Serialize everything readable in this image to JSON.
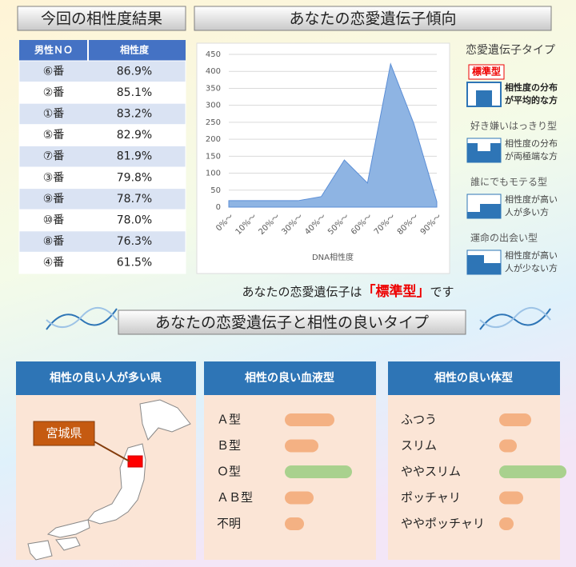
{
  "header": {
    "left_title": "今回の相性度結果",
    "right_title": "あなたの恋愛遺伝子傾向"
  },
  "table": {
    "columns": [
      "男性ＮＯ",
      "相性度"
    ],
    "rows": [
      [
        "⑥番",
        "86.9%"
      ],
      [
        "②番",
        "85.1%"
      ],
      [
        "①番",
        "83.2%"
      ],
      [
        "⑤番",
        "82.9%"
      ],
      [
        "⑦番",
        "81.9%"
      ],
      [
        "③番",
        "79.8%"
      ],
      [
        "⑨番",
        "78.7%"
      ],
      [
        "⑩番",
        "78.0%"
      ],
      [
        "⑧番",
        "76.3%"
      ],
      [
        "④番",
        "61.5%"
      ]
    ]
  },
  "chart_data": [
    {
      "type": "area",
      "x_label": "DNA相性度",
      "categories": [
        "0%～",
        "10%～",
        "20%～",
        "30%～",
        "40%～",
        "50%～",
        "60%～",
        "70%～",
        "80%～",
        "90%～"
      ],
      "values": [
        19,
        19,
        19,
        19,
        31,
        139,
        71,
        422,
        247,
        16
      ],
      "color": "#8eb4e3",
      "ylim": [
        0,
        450
      ],
      "yticks": [
        0,
        50,
        100,
        150,
        200,
        250,
        300,
        350,
        400,
        450
      ],
      "grid": true
    },
    {
      "type": "hbar",
      "title": "相性の良い血液型",
      "categories": [
        "Ａ型",
        "Ｂ型",
        "Ｏ型",
        "ＡＢ型",
        "不明"
      ],
      "values": [
        62,
        42,
        84,
        36,
        24
      ],
      "colors": [
        "#f4b183",
        "#f4b183",
        "#a9d18e",
        "#f4b183",
        "#f4b183"
      ],
      "xlim": [
        0,
        100
      ]
    },
    {
      "type": "hbar",
      "title": "相性の良い体型",
      "categories": [
        "ふつう",
        "スリム",
        "ややスリム",
        "ポッチャリ",
        "ややポッチャリ"
      ],
      "values": [
        40,
        22,
        84,
        30,
        18
      ],
      "colors": [
        "#f4b183",
        "#f4b183",
        "#a9d18e",
        "#f4b183",
        "#f4b183"
      ],
      "xlim": [
        0,
        100
      ]
    }
  ],
  "types": {
    "title": "恋愛遺伝子タイプ",
    "items": [
      {
        "name": "標準型",
        "desc1": "相性度の分布",
        "desc2": "が平均的な方"
      },
      {
        "name": "好き嫌いはっきり型",
        "desc1": "相性度の分布",
        "desc2": "が両極端な方"
      },
      {
        "name": "誰にでもモテる型",
        "desc1": "相性度が高い",
        "desc2": "人が多い方"
      },
      {
        "name": "運命の出会い型",
        "desc1": "相性度が高い",
        "desc2": "人が少ない方"
      }
    ]
  },
  "result": {
    "prefix": "あなたの恋愛遺伝子は",
    "type": "「標準型」",
    "suffix": "です"
  },
  "section_title": "あなたの恋愛遺伝子と相性の良いタイプ",
  "map": {
    "title": "相性の良い人が多い県",
    "callout": "宮城県"
  }
}
